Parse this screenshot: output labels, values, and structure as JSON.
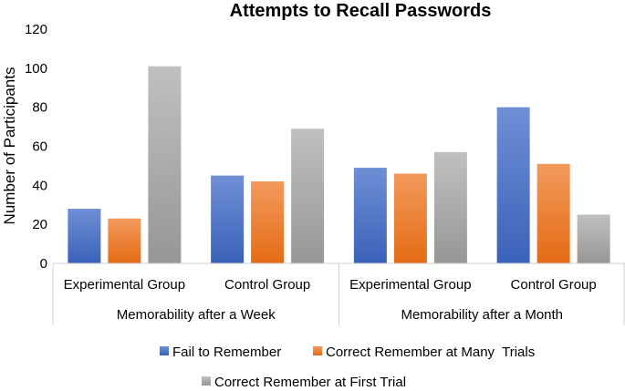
{
  "chart_data": {
    "type": "bar",
    "title": "Attempts to Recall Passwords",
    "ylabel": "Number of Participants",
    "xlabel": "",
    "ylim": [
      0,
      120
    ],
    "yticks": [
      0,
      20,
      40,
      60,
      80,
      100,
      120
    ],
    "grid": false,
    "legend_position": "bottom",
    "groups": [
      {
        "label": "Memorability after a Week",
        "categories": [
          "Experimental Group",
          "Control Group"
        ]
      },
      {
        "label": "Memorability after a Month",
        "categories": [
          "Experimental Group",
          "Control Group"
        ]
      }
    ],
    "categories": [
      "Experimental Group",
      "Control Group",
      "Experimental Group",
      "Control Group"
    ],
    "series": [
      {
        "name": "Fail to Remember",
        "color": "#4472c4",
        "values": [
          28,
          45,
          49,
          80
        ]
      },
      {
        "name": "Correct Remember at Many  Trials",
        "color": "#ed7d31",
        "values": [
          23,
          42,
          46,
          51
        ]
      },
      {
        "name": "Correct Remember at First Trial",
        "color": "#a5a5a5",
        "values": [
          101,
          69,
          57,
          25
        ]
      }
    ]
  }
}
